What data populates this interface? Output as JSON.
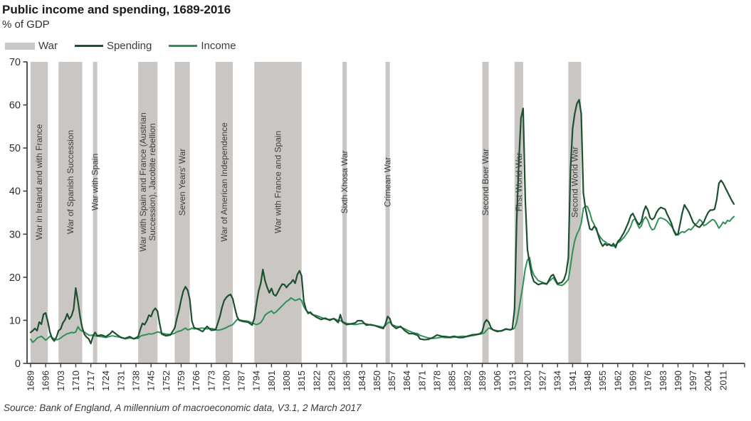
{
  "title": "Public income and spending, 1689-2016",
  "subtitle": "% of GDP",
  "legend": {
    "war_label": "War",
    "spending_label": "Spending",
    "income_label": "Income"
  },
  "source": "Source: Bank of England, A millennium of macroeconomic data, V3.1, 2 March 2017",
  "colors": {
    "spending": "#1d4f30",
    "income": "#2f9157",
    "war_band": "#c9c6c3",
    "axis": "#404040",
    "tick_text": "#2e2e2e",
    "war_label_text": "#3f3f3f"
  },
  "chart_data": {
    "type": "line",
    "title": "Public income and spending, 1689-2016",
    "ylabel": "% of GDP",
    "x_range": [
      1689,
      2016
    ],
    "ylim": [
      0,
      70
    ],
    "grid": false,
    "legend_position": "top-left",
    "y_ticks": [
      0,
      10,
      20,
      30,
      40,
      50,
      60,
      70
    ],
    "x_ticks": [
      1689,
      1696,
      1703,
      1710,
      1717,
      1724,
      1731,
      1738,
      1745,
      1752,
      1759,
      1766,
      1773,
      1780,
      1787,
      1794,
      1801,
      1808,
      1815,
      1822,
      1829,
      1836,
      1843,
      1850,
      1857,
      1864,
      1871,
      1878,
      1885,
      1892,
      1899,
      1906,
      1913,
      1920,
      1927,
      1934,
      1941,
      1948,
      1955,
      1962,
      1969,
      1976,
      1983,
      1990,
      1997,
      2004,
      2011
    ],
    "war_bands": [
      {
        "label": "War in Ireland and with France",
        "start": 1689,
        "end": 1697
      },
      {
        "label": "War of Spanish Succession",
        "start": 1702,
        "end": 1713
      },
      {
        "label": "War with Spain",
        "start": 1718,
        "end": 1720
      },
      {
        "label": "War with Spain and France (Austrian Succession), Jacobite rebellion",
        "lines": [
          "War with Spain and France (Austrian",
          "Succession), Jacobite rebellion"
        ],
        "start": 1739,
        "end": 1748
      },
      {
        "label": "Seven Years' War",
        "start": 1756,
        "end": 1763
      },
      {
        "label": "War of American Independence",
        "start": 1775,
        "end": 1783
      },
      {
        "label": "War with France and Spain",
        "start": 1793,
        "end": 1815
      },
      {
        "label": "Sixth Xhosa War",
        "start": 1834,
        "end": 1836
      },
      {
        "label": "Crimean War",
        "start": 1854,
        "end": 1856
      },
      {
        "label": "Second Boer War",
        "start": 1899,
        "end": 1902
      },
      {
        "label": "First World War",
        "start": 1914,
        "end": 1918
      },
      {
        "label": "Second World War",
        "start": 1939,
        "end": 1945
      }
    ],
    "series_names": [
      "Spending",
      "Income"
    ],
    "rows_format": [
      "year",
      "spending_pct_gdp",
      "income_pct_gdp"
    ],
    "rows": [
      [
        1689,
        7.2,
        5.6
      ],
      [
        1690,
        7.6,
        4.9
      ],
      [
        1691,
        8.1,
        5.3
      ],
      [
        1692,
        7.6,
        5.9
      ],
      [
        1693,
        9.6,
        6.1
      ],
      [
        1694,
        9.1,
        6.3
      ],
      [
        1695,
        11.4,
        5.9
      ],
      [
        1696,
        11.7,
        5.4
      ],
      [
        1697,
        9.7,
        5.8
      ],
      [
        1698,
        7.2,
        6.3
      ],
      [
        1699,
        5.8,
        6.0
      ],
      [
        1700,
        5.2,
        5.7
      ],
      [
        1701,
        6.1,
        5.5
      ],
      [
        1702,
        7.6,
        5.6
      ],
      [
        1703,
        8.0,
        5.9
      ],
      [
        1704,
        9.4,
        6.3
      ],
      [
        1705,
        10.1,
        6.6
      ],
      [
        1706,
        11.5,
        6.9
      ],
      [
        1707,
        10.3,
        7.0
      ],
      [
        1708,
        11.0,
        7.2
      ],
      [
        1709,
        12.6,
        7.1
      ],
      [
        1710,
        17.5,
        7.3
      ],
      [
        1711,
        14.4,
        8.5
      ],
      [
        1712,
        10.9,
        7.8
      ],
      [
        1713,
        8.3,
        7.5
      ],
      [
        1714,
        6.8,
        7.3
      ],
      [
        1715,
        6.1,
        6.9
      ],
      [
        1716,
        5.7,
        6.6
      ],
      [
        1717,
        4.6,
        6.5
      ],
      [
        1718,
        6.3,
        6.6
      ],
      [
        1719,
        7.2,
        6.4
      ],
      [
        1720,
        6.4,
        6.3
      ],
      [
        1722,
        6.6,
        6.2
      ],
      [
        1724,
        6.2,
        6.0
      ],
      [
        1726,
        6.9,
        6.3
      ],
      [
        1727,
        7.5,
        6.4
      ],
      [
        1729,
        6.7,
        6.2
      ],
      [
        1731,
        6.0,
        6.1
      ],
      [
        1733,
        5.8,
        5.7
      ],
      [
        1735,
        6.2,
        5.9
      ],
      [
        1737,
        5.7,
        5.8
      ],
      [
        1739,
        6.2,
        5.8
      ],
      [
        1740,
        7.9,
        6.3
      ],
      [
        1741,
        9.3,
        6.5
      ],
      [
        1742,
        9.0,
        6.6
      ],
      [
        1743,
        9.9,
        6.7
      ],
      [
        1744,
        11.2,
        6.9
      ],
      [
        1745,
        10.9,
        6.8
      ],
      [
        1746,
        12.2,
        6.9
      ],
      [
        1747,
        12.8,
        7.1
      ],
      [
        1748,
        12.1,
        7.3
      ],
      [
        1749,
        9.2,
        7.2
      ],
      [
        1750,
        6.8,
        7.0
      ],
      [
        1752,
        6.4,
        6.8
      ],
      [
        1754,
        6.6,
        6.7
      ],
      [
        1756,
        8.2,
        7.0
      ],
      [
        1757,
        10.5,
        7.3
      ],
      [
        1758,
        12.4,
        7.5
      ],
      [
        1759,
        14.8,
        7.6
      ],
      [
        1760,
        16.8,
        7.9
      ],
      [
        1761,
        17.8,
        8.2
      ],
      [
        1762,
        17.0,
        7.8
      ],
      [
        1763,
        14.9,
        7.9
      ],
      [
        1764,
        9.8,
        8.2
      ],
      [
        1765,
        8.3,
        8.0
      ],
      [
        1767,
        7.9,
        8.1
      ],
      [
        1769,
        7.4,
        8.2
      ],
      [
        1771,
        8.6,
        8.0
      ],
      [
        1773,
        7.7,
        8.1
      ],
      [
        1775,
        7.8,
        7.9
      ],
      [
        1776,
        9.3,
        7.7
      ],
      [
        1777,
        10.9,
        7.8
      ],
      [
        1778,
        13.0,
        7.9
      ],
      [
        1779,
        14.6,
        8.1
      ],
      [
        1780,
        15.3,
        8.3
      ],
      [
        1781,
        15.8,
        8.6
      ],
      [
        1782,
        16.0,
        8.8
      ],
      [
        1783,
        15.0,
        9.0
      ],
      [
        1784,
        12.8,
        9.6
      ],
      [
        1785,
        10.8,
        10.2
      ],
      [
        1786,
        10.0,
        10.1
      ],
      [
        1788,
        9.7,
        9.9
      ],
      [
        1790,
        9.6,
        9.8
      ],
      [
        1792,
        8.9,
        9.4
      ],
      [
        1793,
        10.4,
        9.2
      ],
      [
        1794,
        13.8,
        9.0
      ],
      [
        1795,
        16.8,
        9.2
      ],
      [
        1796,
        18.6,
        9.5
      ],
      [
        1797,
        21.8,
        10.2
      ],
      [
        1798,
        19.2,
        11.2
      ],
      [
        1799,
        17.6,
        11.6
      ],
      [
        1800,
        16.4,
        11.9
      ],
      [
        1801,
        17.4,
        12.2
      ],
      [
        1802,
        16.0,
        11.6
      ],
      [
        1803,
        15.7,
        11.9
      ],
      [
        1804,
        16.6,
        12.4
      ],
      [
        1805,
        17.6,
        12.9
      ],
      [
        1806,
        18.4,
        13.4
      ],
      [
        1807,
        18.3,
        13.9
      ],
      [
        1808,
        17.6,
        14.4
      ],
      [
        1809,
        18.3,
        14.7
      ],
      [
        1810,
        18.7,
        15.2
      ],
      [
        1811,
        19.4,
        14.9
      ],
      [
        1812,
        18.6,
        14.6
      ],
      [
        1813,
        20.6,
        14.8
      ],
      [
        1814,
        21.5,
        15.0
      ],
      [
        1815,
        20.3,
        14.6
      ],
      [
        1816,
        14.5,
        13.2
      ],
      [
        1817,
        12.6,
        12.4
      ],
      [
        1818,
        11.6,
        11.9
      ],
      [
        1819,
        11.9,
        11.7
      ],
      [
        1820,
        11.4,
        11.3
      ],
      [
        1822,
        10.7,
        11.1
      ],
      [
        1824,
        10.2,
        10.7
      ],
      [
        1826,
        10.5,
        10.3
      ],
      [
        1828,
        10.0,
        10.2
      ],
      [
        1830,
        10.4,
        10.4
      ],
      [
        1832,
        9.5,
        10.0
      ],
      [
        1833,
        11.3,
        9.9
      ],
      [
        1834,
        9.6,
        9.7
      ],
      [
        1836,
        9.0,
        9.3
      ],
      [
        1838,
        9.2,
        9.1
      ],
      [
        1840,
        9.4,
        9.0
      ],
      [
        1841,
        9.9,
        9.1
      ],
      [
        1843,
        9.9,
        9.3
      ],
      [
        1845,
        8.9,
        9.2
      ],
      [
        1847,
        9.0,
        8.9
      ],
      [
        1849,
        8.8,
        8.8
      ],
      [
        1851,
        8.4,
        8.6
      ],
      [
        1853,
        8.1,
        8.4
      ],
      [
        1854,
        9.2,
        8.8
      ],
      [
        1855,
        10.9,
        9.4
      ],
      [
        1856,
        10.4,
        9.6
      ],
      [
        1857,
        8.9,
        9.0
      ],
      [
        1859,
        8.1,
        8.6
      ],
      [
        1861,
        8.6,
        8.4
      ],
      [
        1863,
        7.6,
        8.0
      ],
      [
        1865,
        6.9,
        7.5
      ],
      [
        1867,
        6.9,
        7.1
      ],
      [
        1869,
        6.5,
        6.9
      ],
      [
        1870,
        5.7,
        6.5
      ],
      [
        1872,
        5.5,
        6.2
      ],
      [
        1874,
        5.6,
        5.9
      ],
      [
        1876,
        6.0,
        5.8
      ],
      [
        1878,
        6.6,
        5.9
      ],
      [
        1880,
        6.3,
        6.1
      ],
      [
        1882,
        6.2,
        6.0
      ],
      [
        1884,
        6.1,
        6.0
      ],
      [
        1886,
        6.3,
        6.1
      ],
      [
        1888,
        6.0,
        6.2
      ],
      [
        1890,
        6.0,
        6.3
      ],
      [
        1892,
        6.3,
        6.2
      ],
      [
        1894,
        6.6,
        6.4
      ],
      [
        1896,
        6.7,
        6.6
      ],
      [
        1898,
        6.9,
        6.8
      ],
      [
        1899,
        7.4,
        6.9
      ],
      [
        1900,
        9.4,
        7.1
      ],
      [
        1901,
        10.1,
        7.7
      ],
      [
        1902,
        9.6,
        8.2
      ],
      [
        1903,
        8.3,
        8.0
      ],
      [
        1904,
        7.8,
        7.8
      ],
      [
        1906,
        7.4,
        7.6
      ],
      [
        1908,
        7.6,
        7.5
      ],
      [
        1910,
        8.0,
        7.9
      ],
      [
        1912,
        7.8,
        7.8
      ],
      [
        1913,
        8.1,
        7.9
      ],
      [
        1914,
        12.5,
        8.2
      ],
      [
        1915,
        33.0,
        9.5
      ],
      [
        1916,
        47.0,
        12.5
      ],
      [
        1917,
        57.0,
        15.5
      ],
      [
        1918,
        59.2,
        18.5
      ],
      [
        1919,
        38.0,
        22.0
      ],
      [
        1920,
        26.5,
        24.0
      ],
      [
        1921,
        23.2,
        24.6
      ],
      [
        1922,
        20.5,
        21.8
      ],
      [
        1923,
        19.0,
        20.5
      ],
      [
        1925,
        18.3,
        19.2
      ],
      [
        1927,
        18.6,
        18.8
      ],
      [
        1929,
        18.4,
        18.5
      ],
      [
        1931,
        20.3,
        19.5
      ],
      [
        1932,
        20.6,
        19.9
      ],
      [
        1934,
        18.5,
        18.3
      ],
      [
        1936,
        18.8,
        18.1
      ],
      [
        1937,
        19.5,
        18.4
      ],
      [
        1938,
        21.0,
        18.9
      ],
      [
        1939,
        24.5,
        19.5
      ],
      [
        1940,
        45.0,
        22.5
      ],
      [
        1941,
        54.5,
        26.0
      ],
      [
        1942,
        58.0,
        28.5
      ],
      [
        1943,
        60.3,
        30.0
      ],
      [
        1944,
        61.2,
        31.0
      ],
      [
        1945,
        58.0,
        32.5
      ],
      [
        1946,
        39.5,
        36.0
      ],
      [
        1947,
        36.0,
        36.6
      ],
      [
        1948,
        33.5,
        36.3
      ],
      [
        1949,
        31.2,
        35.0
      ],
      [
        1950,
        31.0,
        33.2
      ],
      [
        1951,
        31.8,
        32.3
      ],
      [
        1952,
        31.4,
        31.0
      ],
      [
        1953,
        29.6,
        30.0
      ],
      [
        1954,
        28.1,
        29.2
      ],
      [
        1955,
        27.2,
        28.6
      ],
      [
        1956,
        27.8,
        28.3
      ],
      [
        1957,
        27.4,
        27.9
      ],
      [
        1958,
        27.7,
        27.5
      ],
      [
        1959,
        27.3,
        27.3
      ],
      [
        1960,
        27.8,
        27.2
      ],
      [
        1961,
        26.9,
        27.5
      ],
      [
        1962,
        28.3,
        28.0
      ],
      [
        1963,
        28.8,
        28.3
      ],
      [
        1965,
        30.5,
        29.3
      ],
      [
        1967,
        32.8,
        30.8
      ],
      [
        1968,
        34.3,
        31.8
      ],
      [
        1969,
        34.8,
        33.2
      ],
      [
        1970,
        33.8,
        33.6
      ],
      [
        1971,
        32.8,
        32.4
      ],
      [
        1972,
        32.2,
        31.4
      ],
      [
        1973,
        33.0,
        32.0
      ],
      [
        1974,
        35.2,
        33.4
      ],
      [
        1975,
        36.5,
        34.0
      ],
      [
        1976,
        35.6,
        33.2
      ],
      [
        1977,
        33.8,
        31.8
      ],
      [
        1978,
        33.4,
        31.0
      ],
      [
        1979,
        33.8,
        31.2
      ],
      [
        1980,
        35.0,
        32.4
      ],
      [
        1981,
        35.8,
        33.6
      ],
      [
        1982,
        36.2,
        33.8
      ],
      [
        1983,
        36.0,
        33.6
      ],
      [
        1984,
        35.8,
        33.4
      ],
      [
        1985,
        34.6,
        33.0
      ],
      [
        1986,
        33.6,
        32.4
      ],
      [
        1987,
        32.4,
        31.8
      ],
      [
        1988,
        30.8,
        31.0
      ],
      [
        1989,
        29.8,
        30.2
      ],
      [
        1990,
        30.0,
        29.8
      ],
      [
        1991,
        32.5,
        30.3
      ],
      [
        1992,
        35.0,
        30.6
      ],
      [
        1993,
        36.8,
        30.4
      ],
      [
        1994,
        36.0,
        30.8
      ],
      [
        1995,
        35.2,
        31.2
      ],
      [
        1996,
        34.0,
        31.0
      ],
      [
        1997,
        32.8,
        31.6
      ],
      [
        1998,
        32.2,
        32.2
      ],
      [
        1999,
        31.8,
        32.6
      ],
      [
        2000,
        31.6,
        33.4
      ],
      [
        2001,
        32.2,
        33.0
      ],
      [
        2002,
        32.8,
        32.0
      ],
      [
        2003,
        34.0,
        32.2
      ],
      [
        2004,
        35.0,
        32.6
      ],
      [
        2005,
        35.6,
        33.0
      ],
      [
        2006,
        35.6,
        33.4
      ],
      [
        2007,
        35.8,
        33.2
      ],
      [
        2008,
        38.0,
        32.4
      ],
      [
        2009,
        41.8,
        31.4
      ],
      [
        2010,
        42.5,
        32.0
      ],
      [
        2011,
        41.8,
        32.8
      ],
      [
        2012,
        40.8,
        32.4
      ],
      [
        2013,
        39.8,
        33.2
      ],
      [
        2014,
        38.8,
        33.0
      ],
      [
        2015,
        37.8,
        33.6
      ],
      [
        2016,
        37.0,
        34.1
      ]
    ]
  }
}
